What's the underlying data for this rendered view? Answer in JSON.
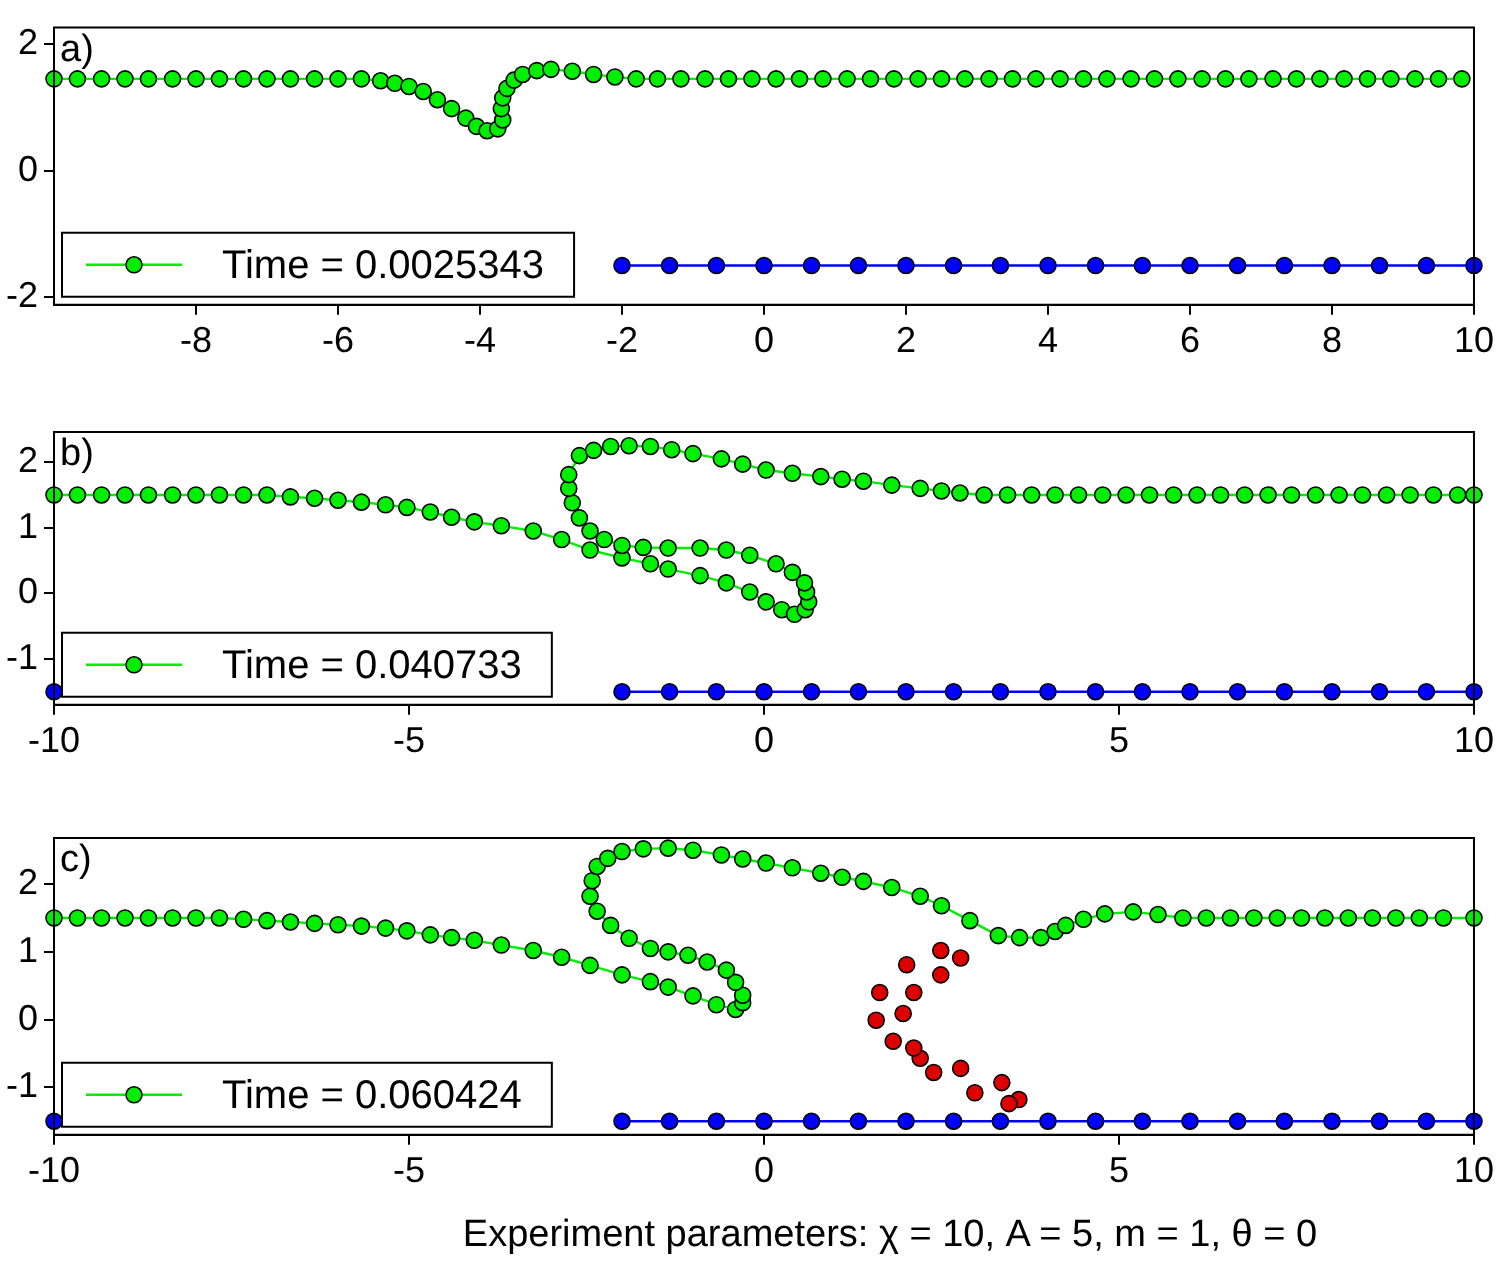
{
  "chart_data": [
    {
      "type": "line",
      "annotations": [
        "a)"
      ],
      "xlim": [
        -10,
        10
      ],
      "xticks": [
        -8,
        -6,
        -4,
        -2,
        0,
        2,
        4,
        6,
        8,
        10
      ],
      "ylim": [
        -2.12,
        2.26
      ],
      "yticks": [
        -2,
        0,
        2
      ],
      "grid": false,
      "legend": "bottom left",
      "marker": "circle",
      "line_style": "solid",
      "series": [
        {
          "name": "Time = 0.0025343",
          "color": "#00ee00",
          "x": [
            -10,
            -9.67,
            -9.33,
            -9,
            -8.67,
            -8.33,
            -8,
            -7.67,
            -7.33,
            -7,
            -6.67,
            -6.33,
            -6,
            -5.67,
            -5.4,
            -5.2,
            -5.0,
            -4.8,
            -4.6,
            -4.4,
            -4.2,
            -4.05,
            -3.9,
            -3.75,
            -3.68,
            -3.7,
            -3.68,
            -3.62,
            -3.52,
            -3.4,
            -3.2,
            -3.0,
            -2.7,
            -2.4,
            -2.1,
            -1.8,
            -1.5,
            -1.17,
            -0.83,
            -0.5,
            -0.17,
            0.17,
            0.5,
            0.83,
            1.17,
            1.5,
            1.83,
            2.17,
            2.5,
            2.83,
            3.17,
            3.5,
            3.83,
            4.17,
            4.5,
            4.83,
            5.17,
            5.5,
            5.83,
            6.17,
            6.5,
            6.83,
            7.17,
            7.5,
            7.83,
            8.17,
            8.5,
            8.83,
            9.17,
            9.5,
            9.83
          ],
          "values": [
            1.45,
            1.45,
            1.45,
            1.45,
            1.45,
            1.45,
            1.45,
            1.45,
            1.45,
            1.45,
            1.45,
            1.45,
            1.45,
            1.45,
            1.42,
            1.38,
            1.33,
            1.25,
            1.12,
            0.98,
            0.83,
            0.7,
            0.63,
            0.66,
            0.8,
            0.98,
            1.15,
            1.3,
            1.43,
            1.52,
            1.58,
            1.6,
            1.57,
            1.52,
            1.48,
            1.45,
            1.45,
            1.45,
            1.45,
            1.45,
            1.45,
            1.45,
            1.45,
            1.45,
            1.45,
            1.45,
            1.45,
            1.45,
            1.45,
            1.45,
            1.45,
            1.45,
            1.45,
            1.45,
            1.45,
            1.45,
            1.45,
            1.45,
            1.45,
            1.45,
            1.45,
            1.45,
            1.45,
            1.45,
            1.45,
            1.45,
            1.45,
            1.45,
            1.45,
            1.45,
            1.45
          ]
        },
        {
          "color": "#0000ff",
          "x": [
            -2,
            -1.33,
            -0.67,
            0,
            0.67,
            1.33,
            2,
            2.67,
            3.33,
            4,
            4.67,
            5.33,
            6,
            6.67,
            7.33,
            8,
            8.67,
            9.33,
            10
          ],
          "values": [
            -1.5,
            -1.5,
            -1.5,
            -1.5,
            -1.5,
            -1.5,
            -1.5,
            -1.5,
            -1.5,
            -1.5,
            -1.5,
            -1.5,
            -1.5,
            -1.5,
            -1.5,
            -1.5,
            -1.5,
            -1.5,
            -1.5
          ]
        }
      ]
    },
    {
      "type": "line",
      "annotations": [
        "b)"
      ],
      "xlim": [
        -10,
        10
      ],
      "xticks": [
        -10,
        -5,
        0,
        5,
        10
      ],
      "ylim": [
        -1.7,
        2.46
      ],
      "yticks": [
        -1,
        0,
        1,
        2
      ],
      "grid": false,
      "legend": "bottom left",
      "marker": "circle",
      "line_style": "solid",
      "series": [
        {
          "name": "Time = 0.040733",
          "color": "#00ee00",
          "x": [
            -10,
            -9.67,
            -9.33,
            -9,
            -8.67,
            -8.33,
            -8,
            -7.67,
            -7.33,
            -7,
            -6.67,
            -6.33,
            -6,
            -5.67,
            -5.33,
            -5.03,
            -4.7,
            -4.4,
            -4.08,
            -3.7,
            -3.25,
            -2.85,
            -2.45,
            -2.0,
            -1.6,
            -1.35,
            -0.9,
            -0.53,
            -0.2,
            0.03,
            0.25,
            0.43,
            0.58,
            0.63,
            0.6,
            0.57,
            0.4,
            0.17,
            -0.2,
            -0.53,
            -0.9,
            -1.35,
            -1.7,
            -2.0,
            -2.25,
            -2.45,
            -2.6,
            -2.7,
            -2.75,
            -2.75,
            -2.6,
            -2.4,
            -2.16,
            -1.9,
            -1.6,
            -1.3,
            -1.0,
            -0.6,
            -0.3,
            0.03,
            0.4,
            0.8,
            1.1,
            1.4,
            1.8,
            2.2,
            2.5,
            2.76,
            3.1,
            3.43,
            3.77,
            4.1,
            4.43,
            4.77,
            5.1,
            5.43,
            5.77,
            6.1,
            6.43,
            6.77,
            7.1,
            7.43,
            7.77,
            8.1,
            8.43,
            8.77,
            9.1,
            9.43,
            9.77,
            10
          ],
          "values": [
            1.5,
            1.5,
            1.5,
            1.5,
            1.5,
            1.5,
            1.5,
            1.5,
            1.5,
            1.5,
            1.47,
            1.45,
            1.42,
            1.39,
            1.35,
            1.31,
            1.24,
            1.16,
            1.09,
            1.03,
            0.95,
            0.82,
            0.66,
            0.54,
            0.45,
            0.37,
            0.27,
            0.16,
            0.02,
            -0.13,
            -0.25,
            -0.32,
            -0.25,
            -0.13,
            0.02,
            0.16,
            0.32,
            0.45,
            0.58,
            0.66,
            0.69,
            0.69,
            0.7,
            0.73,
            0.82,
            0.95,
            1.15,
            1.38,
            1.6,
            1.81,
            2.1,
            2.18,
            2.24,
            2.25,
            2.24,
            2.19,
            2.13,
            2.05,
            1.97,
            1.88,
            1.83,
            1.78,
            1.74,
            1.71,
            1.65,
            1.6,
            1.56,
            1.53,
            1.5,
            1.5,
            1.5,
            1.5,
            1.5,
            1.5,
            1.5,
            1.5,
            1.5,
            1.5,
            1.5,
            1.5,
            1.5,
            1.5,
            1.5,
            1.5,
            1.5,
            1.5,
            1.5,
            1.5,
            1.5,
            1.5
          ]
        },
        {
          "color": "#0000ff",
          "x": [
            -10,
            -9.33,
            -8.67,
            -8,
            -7.33,
            -6.67,
            -6,
            -5.33,
            -4.67,
            -4,
            -3.33,
            -2.67,
            -2,
            -1.33,
            -0.67,
            0,
            0.67,
            1.33,
            2,
            2.67,
            3.33,
            4,
            4.67,
            5.33,
            6,
            6.67,
            7.33,
            8,
            8.67,
            9.33,
            10
          ],
          "values": [
            -1.5,
            null,
            null,
            null,
            null,
            null,
            null,
            null,
            null,
            null,
            null,
            null,
            -1.5,
            -1.5,
            -1.5,
            -1.5,
            -1.5,
            -1.5,
            -1.5,
            -1.5,
            -1.5,
            -1.5,
            -1.5,
            -1.5,
            -1.5,
            -1.5,
            -1.5,
            -1.5,
            -1.5,
            -1.5,
            -1.5
          ]
        }
      ]
    },
    {
      "type": "line",
      "annotations": [
        "c)",
        "Experiment parameters: χ = 10, A = 5, m = 1, θ = 0"
      ],
      "xlim": [
        -10,
        10
      ],
      "xticks": [
        -10,
        -5,
        0,
        5,
        10
      ],
      "ylim": [
        -1.7,
        2.68
      ],
      "yticks": [
        -1,
        0,
        1,
        2
      ],
      "grid": false,
      "legend": "bottom left",
      "marker": "circle",
      "line_style": "solid",
      "series": [
        {
          "name": "Time = 0.060424",
          "color": "#00ee00",
          "x": [
            -10,
            -9.67,
            -9.33,
            -9,
            -8.67,
            -8.33,
            -8,
            -7.67,
            -7.33,
            -7.0,
            -6.67,
            -6.33,
            -6.0,
            -5.67,
            -5.33,
            -5.03,
            -4.7,
            -4.4,
            -4.08,
            -3.7,
            -3.25,
            -2.85,
            -2.45,
            -2.0,
            -1.6,
            -1.35,
            -1.0,
            -0.67,
            -0.4,
            -0.3,
            -0.3,
            -0.4,
            -0.53,
            -0.8,
            -1.07,
            -1.35,
            -1.6,
            -1.9,
            -2.16,
            -2.35,
            -2.45,
            -2.42,
            -2.35,
            -2.2,
            -2.0,
            -1.7,
            -1.35,
            -1.0,
            -0.6,
            -0.3,
            0.03,
            0.4,
            0.8,
            1.1,
            1.4,
            1.8,
            2.2,
            2.5,
            2.9,
            3.3,
            3.6,
            3.9,
            4.1,
            4.25,
            4.5,
            4.8,
            5.2,
            5.55,
            5.9,
            6.23,
            6.57,
            6.9,
            7.23,
            7.57,
            7.9,
            8.23,
            8.57,
            8.9,
            9.23,
            9.57,
            10
          ],
          "values": [
            1.5,
            1.5,
            1.5,
            1.5,
            1.5,
            1.5,
            1.5,
            1.5,
            1.48,
            1.46,
            1.44,
            1.42,
            1.4,
            1.38,
            1.35,
            1.31,
            1.25,
            1.21,
            1.17,
            1.1,
            1.02,
            0.92,
            0.8,
            0.66,
            0.56,
            0.48,
            0.35,
            0.22,
            0.15,
            0.25,
            0.36,
            0.55,
            0.73,
            0.85,
            0.95,
            1.0,
            1.05,
            1.2,
            1.39,
            1.6,
            1.82,
            2.05,
            2.26,
            2.38,
            2.48,
            2.52,
            2.53,
            2.5,
            2.43,
            2.37,
            2.31,
            2.24,
            2.16,
            2.1,
            2.04,
            1.95,
            1.82,
            1.68,
            1.46,
            1.24,
            1.21,
            1.21,
            1.3,
            1.39,
            1.48,
            1.56,
            1.59,
            1.55,
            1.5,
            1.5,
            1.5,
            1.5,
            1.5,
            1.5,
            1.5,
            1.5,
            1.5,
            1.5,
            1.5,
            1.5,
            1.5
          ]
        },
        {
          "type": "scatter",
          "color": "#dd0000",
          "x": [
            2.77,
            2.49,
            2.01,
            1.63,
            1.58,
            1.82,
            2.2,
            2.77,
            3.35,
            3.59,
            3.45,
            2.97,
            2.39,
            2.11,
            1.96,
            2.11,
            2.49
          ],
          "values": [
            0.91,
            1.02,
            0.81,
            0.4,
            -0.01,
            -0.32,
            -0.57,
            -0.72,
            -0.93,
            -1.18,
            -1.24,
            -1.08,
            -0.78,
            -0.42,
            0.09,
            0.4,
            0.66
          ]
        },
        {
          "color": "#0000ff",
          "x": [
            -10,
            -9.33,
            -8.67,
            -8,
            -7.33,
            -6.67,
            -6,
            -5.33,
            -4.67,
            -4,
            -3.33,
            -2.67,
            -2,
            -1.33,
            -0.67,
            0,
            0.67,
            1.33,
            2,
            2.67,
            3.33,
            4,
            4.67,
            5.33,
            6,
            6.67,
            7.33,
            8,
            8.67,
            9.33,
            10
          ],
          "values": [
            -1.5,
            null,
            null,
            null,
            null,
            null,
            null,
            null,
            null,
            null,
            null,
            null,
            -1.5,
            -1.5,
            -1.5,
            -1.5,
            -1.5,
            -1.5,
            -1.5,
            -1.5,
            -1.5,
            -1.5,
            -1.5,
            -1.5,
            -1.5,
            -1.5,
            -1.5,
            -1.5,
            -1.5,
            -1.5,
            -1.5
          ]
        }
      ]
    }
  ]
}
